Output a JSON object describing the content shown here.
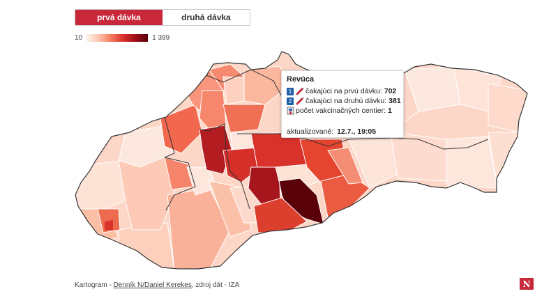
{
  "tabs": {
    "first_dose": "prvá dávka",
    "second_dose": "druhá dávka",
    "active": "first_dose"
  },
  "legend": {
    "min": "10",
    "max": "1 399",
    "scale_colors": [
      "#fff2ec",
      "#fcc4ad",
      "#f47a5e",
      "#d9302a",
      "#9e0e18",
      "#5b0009"
    ]
  },
  "tooltip": {
    "title": "Revúca",
    "row1_badge": "1",
    "row1_label": "čakajúci na prvú dávku:",
    "row1_value": "702",
    "row2_badge": "2",
    "row2_label": "čakajúci na druhú dávku:",
    "row2_value": "381",
    "row3_label": "počet vakcinačných centier:",
    "row3_value": "1",
    "updated_label": "aktualizované:",
    "updated_value": "12.7., 19:05"
  },
  "footer": {
    "prefix": "Kartogram - ",
    "author_link": "Denník N/Daniel Kerekes",
    "suffix": ", zdroj dát - IZA"
  },
  "logo": "N"
}
